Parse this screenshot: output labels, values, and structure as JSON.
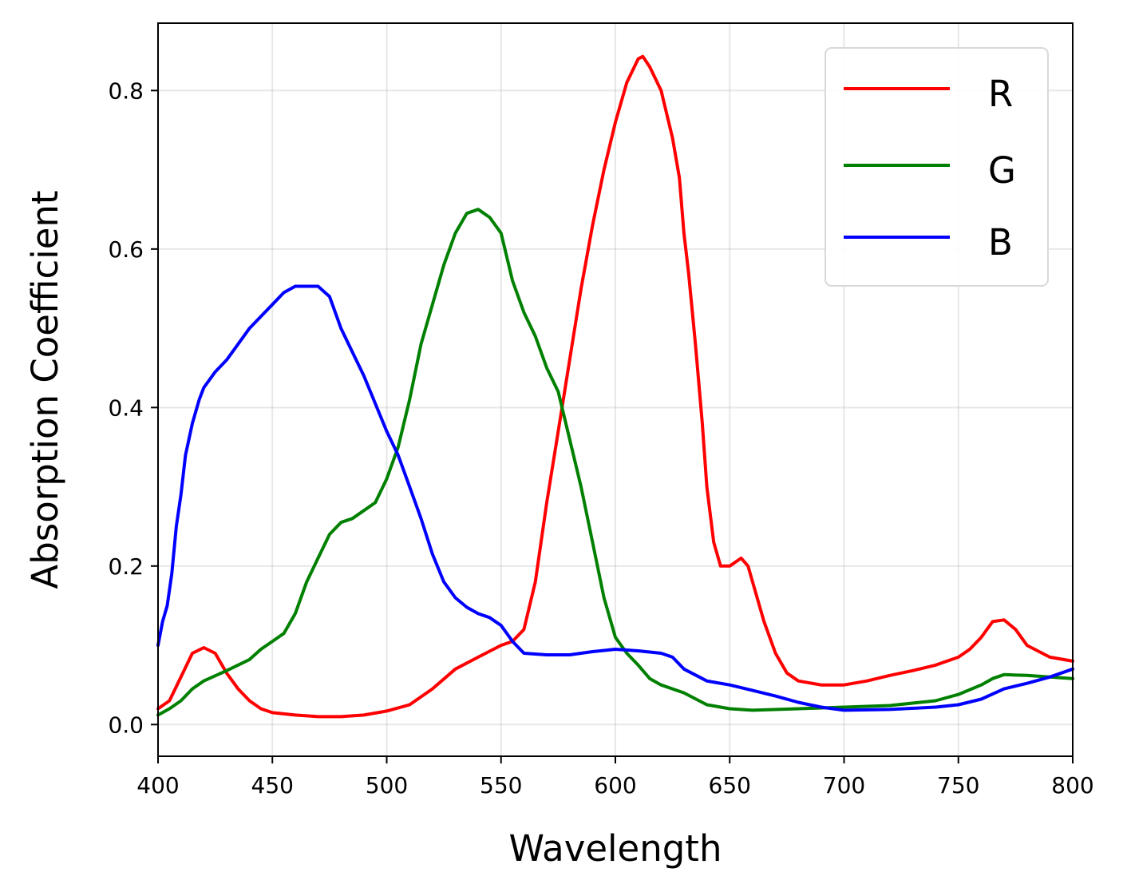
{
  "chart_data": {
    "type": "line",
    "title": "",
    "xlabel": "Wavelength",
    "ylabel": "Absorption Coefficient",
    "xlim": [
      400,
      800
    ],
    "ylim": [
      -0.04,
      0.885
    ],
    "grid": true,
    "legend_position": "top-right",
    "x_ticks": [
      400,
      450,
      500,
      550,
      600,
      650,
      700,
      750,
      800
    ],
    "x_tick_labels": [
      "400",
      "450",
      "500",
      "550",
      "600",
      "650",
      "700",
      "750",
      "800"
    ],
    "y_ticks": [
      0.0,
      0.2,
      0.4,
      0.6,
      0.8
    ],
    "y_tick_labels": [
      "0.0",
      "0.2",
      "0.4",
      "0.6",
      "0.8"
    ],
    "series": [
      {
        "name": "R",
        "color": "#ff0000",
        "x": [
          400,
          405,
          410,
          415,
          420,
          425,
          430,
          435,
          440,
          445,
          450,
          460,
          470,
          480,
          490,
          500,
          510,
          520,
          530,
          540,
          550,
          555,
          560,
          565,
          570,
          575,
          580,
          585,
          590,
          595,
          600,
          605,
          610,
          612,
          615,
          620,
          625,
          628,
          630,
          632,
          635,
          638,
          640,
          643,
          646,
          650,
          655,
          658,
          660,
          665,
          670,
          675,
          680,
          690,
          700,
          710,
          720,
          730,
          740,
          750,
          755,
          760,
          765,
          770,
          775,
          780,
          790,
          800
        ],
        "y": [
          0.02,
          0.03,
          0.06,
          0.09,
          0.097,
          0.09,
          0.065,
          0.045,
          0.03,
          0.02,
          0.015,
          0.012,
          0.01,
          0.01,
          0.012,
          0.017,
          0.025,
          0.045,
          0.07,
          0.085,
          0.1,
          0.105,
          0.12,
          0.18,
          0.28,
          0.37,
          0.46,
          0.55,
          0.63,
          0.7,
          0.76,
          0.81,
          0.84,
          0.843,
          0.83,
          0.8,
          0.74,
          0.69,
          0.62,
          0.57,
          0.48,
          0.38,
          0.3,
          0.23,
          0.2,
          0.2,
          0.21,
          0.2,
          0.18,
          0.13,
          0.09,
          0.065,
          0.055,
          0.05,
          0.05,
          0.055,
          0.062,
          0.068,
          0.075,
          0.085,
          0.095,
          0.11,
          0.13,
          0.132,
          0.12,
          0.1,
          0.085,
          0.08
        ]
      },
      {
        "name": "G",
        "color": "#008000",
        "x": [
          400,
          405,
          410,
          415,
          420,
          430,
          440,
          445,
          450,
          455,
          460,
          465,
          470,
          475,
          480,
          485,
          490,
          495,
          500,
          505,
          510,
          515,
          520,
          525,
          530,
          535,
          540,
          545,
          550,
          555,
          560,
          565,
          570,
          575,
          580,
          585,
          590,
          595,
          600,
          605,
          610,
          615,
          620,
          630,
          640,
          650,
          660,
          680,
          700,
          720,
          740,
          750,
          760,
          765,
          770,
          780,
          790,
          800
        ],
        "y": [
          0.012,
          0.02,
          0.03,
          0.045,
          0.055,
          0.068,
          0.082,
          0.095,
          0.105,
          0.115,
          0.14,
          0.18,
          0.21,
          0.24,
          0.255,
          0.26,
          0.27,
          0.28,
          0.31,
          0.35,
          0.41,
          0.48,
          0.53,
          0.58,
          0.62,
          0.645,
          0.65,
          0.64,
          0.62,
          0.56,
          0.52,
          0.49,
          0.45,
          0.42,
          0.36,
          0.3,
          0.23,
          0.16,
          0.11,
          0.09,
          0.075,
          0.058,
          0.05,
          0.04,
          0.025,
          0.02,
          0.018,
          0.02,
          0.022,
          0.024,
          0.03,
          0.038,
          0.05,
          0.058,
          0.063,
          0.062,
          0.06,
          0.058
        ]
      },
      {
        "name": "B",
        "color": "#0000ff",
        "x": [
          400,
          402,
          404,
          406,
          408,
          410,
          412,
          415,
          418,
          420,
          425,
          430,
          435,
          440,
          445,
          450,
          455,
          460,
          465,
          470,
          475,
          480,
          485,
          490,
          495,
          500,
          505,
          510,
          515,
          520,
          525,
          530,
          535,
          540,
          545,
          550,
          555,
          560,
          570,
          580,
          590,
          600,
          610,
          620,
          625,
          630,
          640,
          650,
          660,
          670,
          680,
          690,
          700,
          720,
          740,
          750,
          760,
          770,
          780,
          790,
          800
        ],
        "y": [
          0.1,
          0.13,
          0.15,
          0.19,
          0.25,
          0.29,
          0.34,
          0.38,
          0.41,
          0.425,
          0.445,
          0.46,
          0.48,
          0.5,
          0.515,
          0.53,
          0.545,
          0.553,
          0.553,
          0.553,
          0.54,
          0.5,
          0.47,
          0.44,
          0.405,
          0.37,
          0.34,
          0.3,
          0.26,
          0.215,
          0.18,
          0.16,
          0.148,
          0.14,
          0.135,
          0.125,
          0.105,
          0.09,
          0.088,
          0.088,
          0.092,
          0.095,
          0.093,
          0.09,
          0.085,
          0.07,
          0.055,
          0.05,
          0.043,
          0.036,
          0.028,
          0.022,
          0.018,
          0.019,
          0.022,
          0.025,
          0.032,
          0.045,
          0.052,
          0.06,
          0.07
        ]
      }
    ]
  }
}
